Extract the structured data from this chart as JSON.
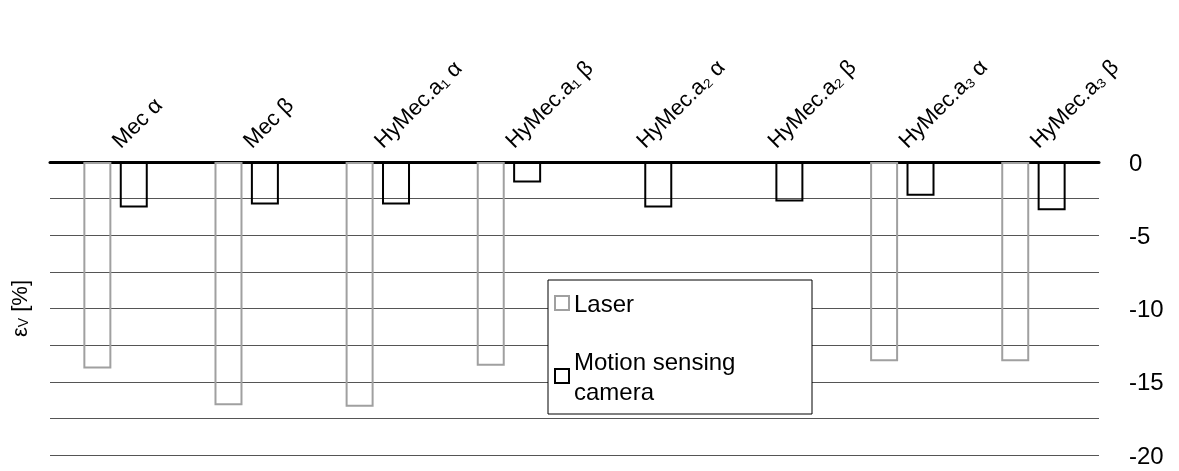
{
  "chart_data": {
    "type": "bar",
    "ylabel": "ε$_{V}$ [%]",
    "categories": [
      "Mec α",
      "Mec β",
      "HyMec.a₁ α",
      "HyMec.a₁ β",
      "HyMec.a₂ α",
      "HyMec.a₂ β",
      "HyMec.a₃ α",
      "HyMec.a₃ β"
    ],
    "series": [
      {
        "name": "Laser",
        "color": "#a0a0a0",
        "values": [
          -14.1,
          -16.6,
          -16.7,
          -13.9,
          null,
          null,
          -13.6,
          -13.6
        ]
      },
      {
        "name": "Motion sensing camera",
        "color": "#000000",
        "values": [
          -3.1,
          -2.9,
          -2.9,
          -1.4,
          -3.1,
          -2.7,
          -2.3,
          -3.3
        ]
      }
    ],
    "ylim": [
      -20,
      0
    ],
    "yticks": [
      0,
      {
        "value": -2.5,
        "label": null
      },
      -5,
      {
        "value": -7.5,
        "label": null
      },
      -10,
      {
        "value": -12.5,
        "label": null
      },
      -15,
      {
        "value": -17.5,
        "label": null
      },
      -20
    ],
    "grid": true,
    "legend": "bottom"
  }
}
